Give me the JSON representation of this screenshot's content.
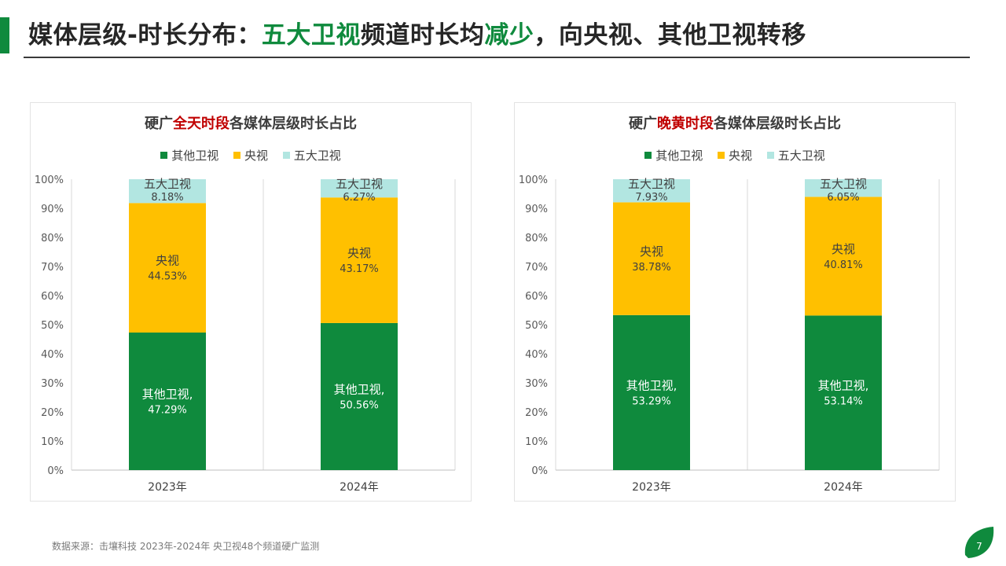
{
  "page": {
    "title_part1": "媒体层级-时长分布：",
    "title_highlight1": "五大卫视",
    "title_part2": "频道时长均",
    "title_highlight2": "减少",
    "title_part3": "，向央视、其他卫视转移",
    "footer_source": "数据来源：击壤科技  2023年-2024年 央卫视48个频道硬广监测",
    "page_number": "7"
  },
  "colors": {
    "accent": "#0f8a3d",
    "title_highlight": "#0f8a3d",
    "chart_highlight": "#c00000",
    "other_satellite": "#0f8a3d",
    "cctv": "#ffc000",
    "top5_satellite": "#b2e6e1"
  },
  "charts": [
    {
      "title_prefix": "硬广",
      "title_highlight": "全天时段",
      "title_suffix": "各媒体层级时长占比"
    },
    {
      "title_prefix": "硬广",
      "title_highlight": "晚黄时段",
      "title_suffix": "各媒体层级时长占比"
    }
  ],
  "chart_data": [
    {
      "type": "bar",
      "stacked": true,
      "percent": true,
      "title": "硬广全天时段各媒体层级时长占比",
      "categories": [
        "2023年",
        "2024年"
      ],
      "ylim": [
        0,
        100
      ],
      "yticks": [
        "0%",
        "10%",
        "20%",
        "30%",
        "40%",
        "50%",
        "60%",
        "70%",
        "80%",
        "90%",
        "100%"
      ],
      "grid": "vertical",
      "legend_position": "top",
      "series": [
        {
          "name": "其他卫视",
          "values": [
            47.29,
            50.56
          ],
          "labels": [
            "47.29%",
            "50.56%"
          ],
          "label_name": "其他卫视,",
          "color": "#0f8a3d",
          "label_color": "#ffffff"
        },
        {
          "name": "央视",
          "values": [
            44.53,
            43.17
          ],
          "labels": [
            "44.53%",
            "43.17%"
          ],
          "label_name": "央视",
          "color": "#ffc000",
          "label_color": "#404040"
        },
        {
          "name": "五大卫视",
          "values": [
            8.18,
            6.27
          ],
          "labels": [
            "8.18%",
            "6.27%"
          ],
          "label_name": "五大卫视",
          "color": "#b2e6e1",
          "label_color": "#404040"
        }
      ]
    },
    {
      "type": "bar",
      "stacked": true,
      "percent": true,
      "title": "硬广晚黄时段各媒体层级时长占比",
      "categories": [
        "2023年",
        "2024年"
      ],
      "ylim": [
        0,
        100
      ],
      "yticks": [
        "0%",
        "10%",
        "20%",
        "30%",
        "40%",
        "50%",
        "60%",
        "70%",
        "80%",
        "90%",
        "100%"
      ],
      "grid": "vertical",
      "legend_position": "top",
      "series": [
        {
          "name": "其他卫视",
          "values": [
            53.29,
            53.14
          ],
          "labels": [
            "53.29%",
            "53.14%"
          ],
          "label_name": "其他卫视,",
          "color": "#0f8a3d",
          "label_color": "#ffffff"
        },
        {
          "name": "央视",
          "values": [
            38.78,
            40.81
          ],
          "labels": [
            "38.78%",
            "40.81%"
          ],
          "label_name": "央视",
          "color": "#ffc000",
          "label_color": "#404040"
        },
        {
          "name": "五大卫视",
          "values": [
            7.93,
            6.05
          ],
          "labels": [
            "7.93%",
            "6.05%"
          ],
          "label_name": "五大卫视",
          "color": "#b2e6e1",
          "label_color": "#404040"
        }
      ]
    }
  ]
}
